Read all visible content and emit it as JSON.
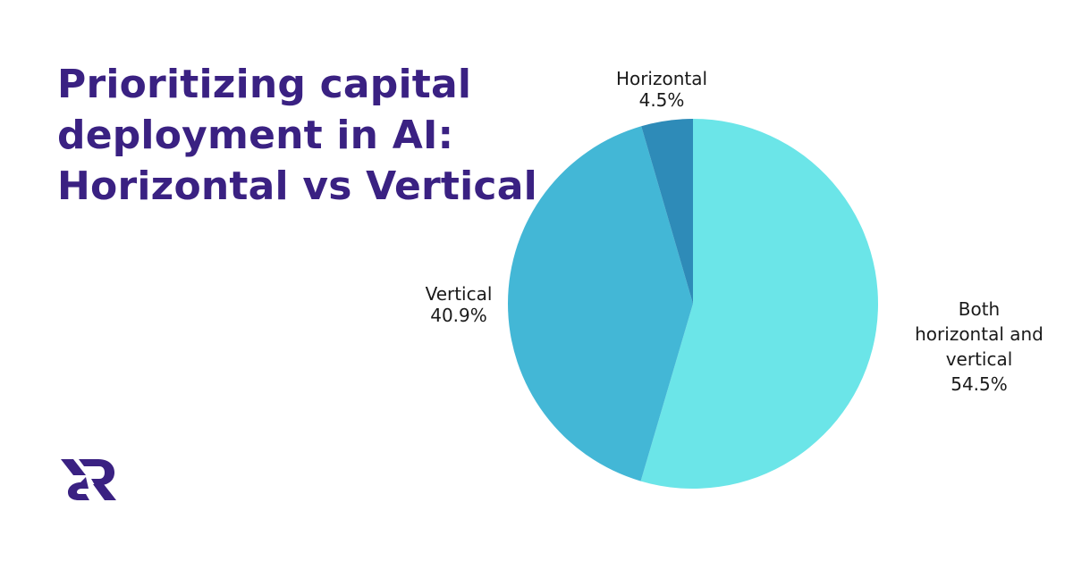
{
  "title": {
    "lines": [
      "Prioritizing capital",
      "deployment in AI:",
      "Horizontal vs Vertical"
    ],
    "color": "#3a2182"
  },
  "logo": {
    "name": "brand-logo-er-monogram",
    "color": "#3a2182"
  },
  "chart_data": {
    "type": "pie",
    "title": "Prioritizing capital deployment in AI: Horizontal vs Vertical",
    "categories": [
      "Both horizontal and vertical",
      "Vertical",
      "Horizontal"
    ],
    "values": [
      54.5,
      40.9,
      4.5
    ],
    "colors": [
      "#6be5e8",
      "#43b7d6",
      "#2e8bb8"
    ],
    "start_angle": "12 o'clock",
    "direction": "clockwise",
    "labels": [
      {
        "lines": [
          "Both",
          "horizontal and",
          "vertical"
        ],
        "value": "54.5%"
      },
      {
        "lines": [
          "Vertical"
        ],
        "value": "40.9%"
      },
      {
        "lines": [
          "Horizontal"
        ],
        "value": "4.5%"
      }
    ],
    "legend": "none (outside data labels)"
  }
}
